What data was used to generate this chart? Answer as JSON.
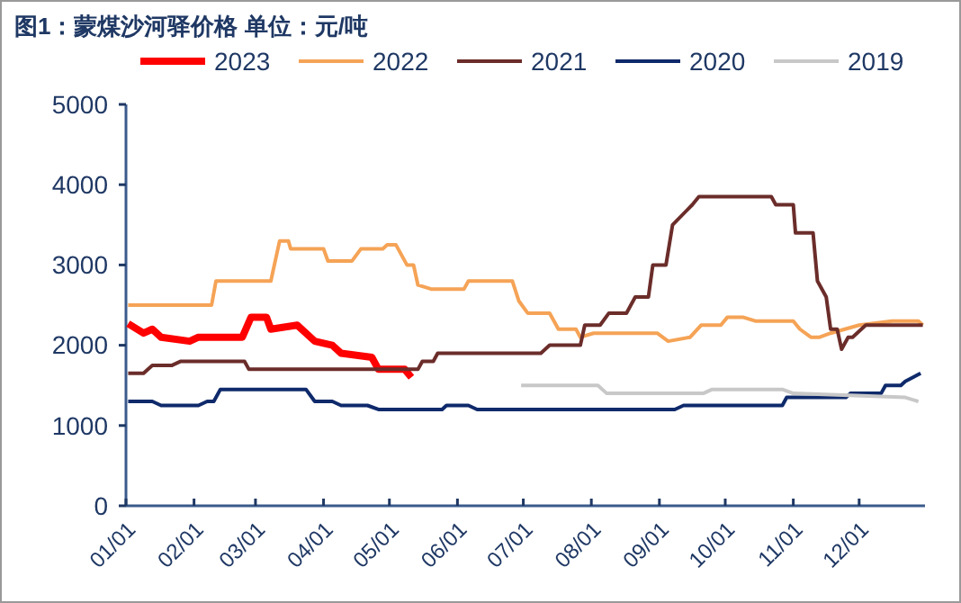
{
  "chart_data": {
    "type": "line",
    "title": "图1：蒙煤沙河驿价格  单位：元/吨",
    "xlim": [
      "--01-01",
      "--12-31"
    ],
    "xticks": [
      {
        "value": "--01-01",
        "label": "01/01"
      },
      {
        "value": "--02-01",
        "label": "02/01"
      },
      {
        "value": "--03-01",
        "label": "03/01"
      },
      {
        "value": "--04-01",
        "label": "04/01"
      },
      {
        "value": "--05-01",
        "label": "05/01"
      },
      {
        "value": "--06-01",
        "label": "06/01"
      },
      {
        "value": "--07-01",
        "label": "07/01"
      },
      {
        "value": "--08-01",
        "label": "08/01"
      },
      {
        "value": "--09-01",
        "label": "09/01"
      },
      {
        "value": "--10-01",
        "label": "10/01"
      },
      {
        "value": "--11-01",
        "label": "11/01"
      },
      {
        "value": "--12-01",
        "label": "12/01"
      }
    ],
    "ylim": [
      0,
      5000
    ],
    "yticks": [
      0,
      1000,
      2000,
      3000,
      4000,
      5000
    ],
    "grid": false,
    "legend": "top",
    "marker": "none",
    "line_style": "solid",
    "series": [
      {
        "name": "2023",
        "color": "#ff0000",
        "x": [
          "--01-02",
          "--01-09",
          "--01-13",
          "--01-17",
          "--01-30",
          "--02-03",
          "--02-23",
          "--02-27",
          "--03-06",
          "--03-08",
          "--03-20",
          "--03-28",
          "--04-05",
          "--04-09",
          "--04-23",
          "--04-26",
          "--05-08",
          "--05-11"
        ],
        "values": [
          2270,
          2150,
          2200,
          2100,
          2050,
          2100,
          2100,
          2350,
          2350,
          2200,
          2250,
          2050,
          2000,
          1900,
          1850,
          1700,
          1700,
          1600
        ]
      },
      {
        "name": "2022",
        "color": "#f5a356",
        "x": [
          "--01-02",
          "--02-09",
          "--02-11",
          "--03-08",
          "--03-12",
          "--03-16",
          "--03-17",
          "--04-01",
          "--04-03",
          "--04-14",
          "--04-18",
          "--04-28",
          "--04-30",
          "--05-04",
          "--05-09",
          "--05-12",
          "--05-14",
          "--05-20",
          "--06-04",
          "--06-06",
          "--06-26",
          "--06-29",
          "--07-03",
          "--07-13",
          "--07-17",
          "--07-25",
          "--07-27",
          "--08-02",
          "--08-31",
          "--09-05",
          "--09-15",
          "--09-20",
          "--09-29",
          "--10-02",
          "--10-09",
          "--10-15",
          "--11-01",
          "--11-04",
          "--11-09",
          "--11-13",
          "--11-18",
          "--12-01",
          "--12-16",
          "--12-28",
          "--12-30"
        ],
        "values": [
          2500,
          2500,
          2800,
          2800,
          3300,
          3300,
          3200,
          3200,
          3050,
          3050,
          3200,
          3200,
          3250,
          3250,
          3000,
          3000,
          2750,
          2700,
          2700,
          2800,
          2800,
          2550,
          2400,
          2400,
          2200,
          2200,
          2100,
          2150,
          2150,
          2050,
          2100,
          2250,
          2250,
          2350,
          2350,
          2300,
          2300,
          2200,
          2100,
          2100,
          2150,
          2250,
          2300,
          2300,
          2250
        ]
      },
      {
        "name": "2021",
        "color": "#6b2d2a",
        "x": [
          "--01-02",
          "--01-09",
          "--01-13",
          "--01-22",
          "--01-26",
          "--02-24",
          "--02-26",
          "--05-14",
          "--05-16",
          "--05-21",
          "--05-23",
          "--07-09",
          "--07-13",
          "--07-27",
          "--07-29",
          "--08-05",
          "--08-09",
          "--08-17",
          "--08-21",
          "--08-27",
          "--08-29",
          "--09-04",
          "--09-07",
          "--09-16",
          "--09-19",
          "--10-22",
          "--10-24",
          "--11-01",
          "--11-02",
          "--11-10",
          "--11-12",
          "--11-16",
          "--11-18",
          "--11-21",
          "--11-23",
          "--11-26",
          "--11-28",
          "--12-04",
          "--12-06",
          "--12-30"
        ],
        "values": [
          1650,
          1650,
          1750,
          1750,
          1800,
          1800,
          1700,
          1700,
          1800,
          1800,
          1900,
          1900,
          2000,
          2000,
          2250,
          2250,
          2400,
          2400,
          2600,
          2600,
          3000,
          3000,
          3500,
          3750,
          3850,
          3850,
          3750,
          3750,
          3400,
          3400,
          2800,
          2600,
          2200,
          2200,
          1950,
          2100,
          2100,
          2250,
          2250,
          2250
        ]
      },
      {
        "name": "2020",
        "color": "#0f2a6b",
        "x": [
          "--01-02",
          "--01-13",
          "--01-17",
          "--02-03",
          "--02-07",
          "--02-10",
          "--02-13",
          "--03-24",
          "--03-28",
          "--04-05",
          "--04-09",
          "--04-21",
          "--04-26",
          "--05-25",
          "--05-27",
          "--06-06",
          "--06-10",
          "--09-08",
          "--09-12",
          "--10-27",
          "--10-29",
          "--11-25",
          "--11-27",
          "--12-11",
          "--12-13",
          "--12-20",
          "--12-22",
          "--12-29"
        ],
        "values": [
          1300,
          1300,
          1250,
          1250,
          1300,
          1300,
          1450,
          1450,
          1300,
          1300,
          1250,
          1250,
          1200,
          1200,
          1250,
          1250,
          1200,
          1200,
          1250,
          1250,
          1350,
          1350,
          1400,
          1400,
          1500,
          1500,
          1550,
          1650
        ]
      },
      {
        "name": "2019",
        "color": "#c8c8c8",
        "x": [
          "--06-30",
          "--08-04",
          "--08-08",
          "--09-21",
          "--09-25",
          "--10-27",
          "--11-01",
          "--12-22",
          "--12-28"
        ],
        "values": [
          1500,
          1500,
          1400,
          1400,
          1450,
          1450,
          1400,
          1350,
          1300
        ]
      }
    ]
  }
}
